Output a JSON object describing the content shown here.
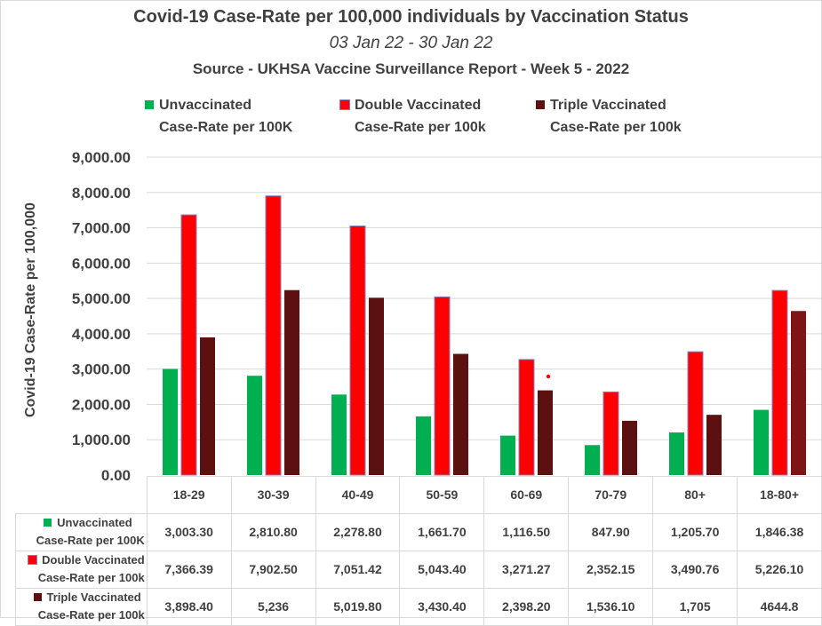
{
  "chart_data": {
    "type": "bar",
    "title": "Covid-19 Case-Rate per 100,000 individuals by Vaccination Status",
    "subtitle": "03 Jan 22 - 30 Jan 22",
    "source": "Source - UKHSA Vaccine Surveillance Report - Week 5 - 2022",
    "xlabel": "",
    "ylabel": "Covid-19 Case-Rate per 100,000",
    "ylim": [
      0,
      9000
    ],
    "yticks": [
      "0.00",
      "1,000.00",
      "2,000.00",
      "3,000.00",
      "4,000.00",
      "5,000.00",
      "6,000.00",
      "7,000.00",
      "8,000.00",
      "9,000.00"
    ],
    "grid": true,
    "legend_position": "top",
    "categories": [
      "18-29",
      "30-39",
      "40-49",
      "50-59",
      "60-69",
      "70-79",
      "80+",
      "18-80+"
    ],
    "series": [
      {
        "name": "Unvaccinated Case-Rate per 100K",
        "legend_line1": "Unvaccinated",
        "legend_line2": "Case-Rate per 100K",
        "color": "#00b050",
        "values": [
          3003.3,
          2810.8,
          2278.8,
          1661.7,
          1116.5,
          847.9,
          1205.7,
          1846.38
        ],
        "labels": [
          "3,003.30",
          "2,810.80",
          "2,278.80",
          "1,661.70",
          "1,116.50",
          "847.90",
          "1,205.70",
          "1,846.38"
        ]
      },
      {
        "name": "Double Vaccinated Case-Rate per 100k",
        "legend_line1": "Double Vaccinated",
        "legend_line2": "Case-Rate per 100k",
        "color": "#ff0000",
        "values": [
          7366.39,
          7902.5,
          7051.42,
          5043.4,
          3271.27,
          2352.15,
          3490.76,
          5226.1
        ],
        "labels": [
          "7,366.39",
          "7,902.50",
          "7,051.42",
          "5,043.40",
          "3,271.27",
          "2,352.15",
          "3,490.76",
          "5,226.10"
        ]
      },
      {
        "name": "Triple Vaccinated Case-Rate per 100k",
        "legend_line1": "Triple Vaccinated",
        "legend_line2": "Case-Rate per 100k",
        "color": "#5c1010",
        "values": [
          3898.4,
          5236,
          5019.8,
          3430.4,
          2398.2,
          1536.1,
          1705,
          4644.8
        ],
        "labels": [
          "3,898.40",
          "5,236",
          "5,019.80",
          "3,430.40",
          "2,398.20",
          "1,536.10",
          "1,705",
          "4644.8"
        ]
      }
    ]
  }
}
